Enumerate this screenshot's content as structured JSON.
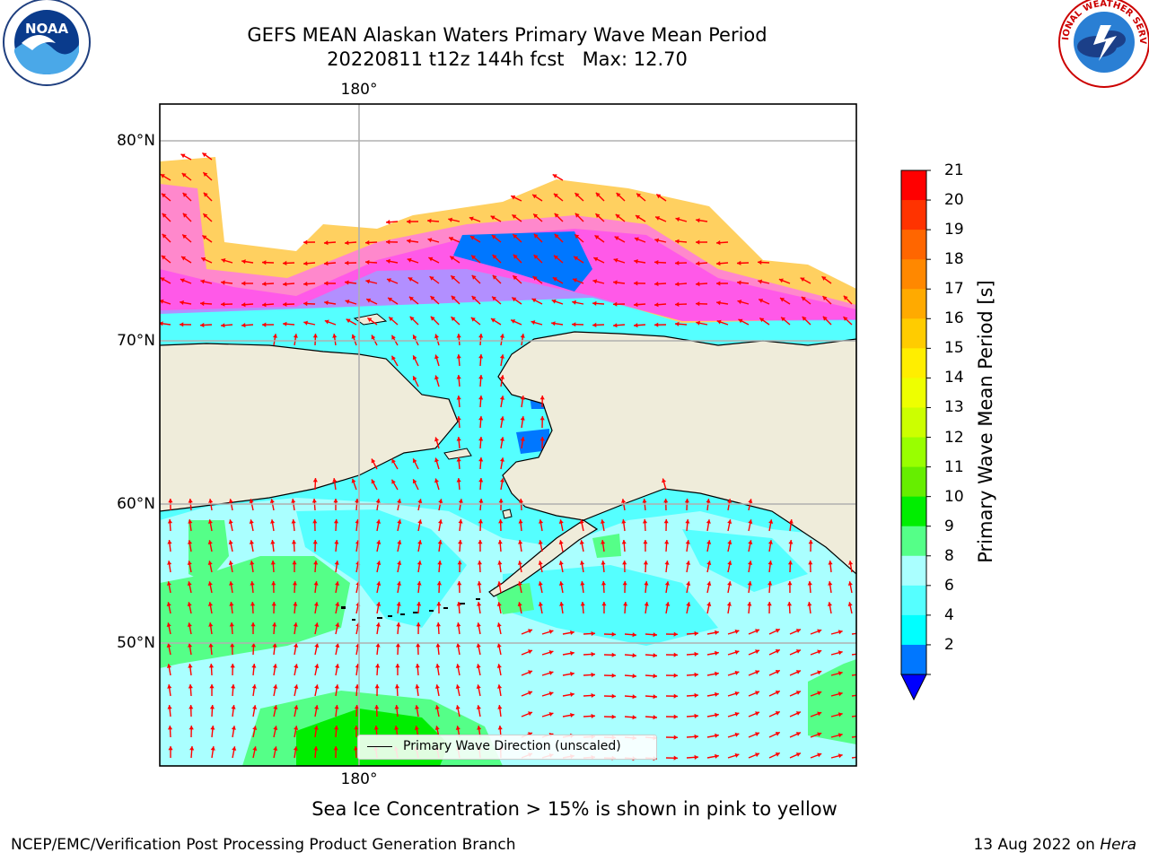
{
  "title": {
    "line1": "GEFS MEAN Alaskan Waters Primary Wave Mean Period",
    "line2": "20220811 t12z 144h fcst   Max: 12.70"
  },
  "logos": {
    "noaa": {
      "text": "NOAA",
      "ring_text": "NATIONAL OCEANIC AND ATMOSPHERIC ADMINISTRATION · U.S. DEPARTMENT OF COMMERCE"
    },
    "nws": {
      "ring_text": "NATIONAL WEATHER SERVICE"
    }
  },
  "map": {
    "lon_label_top": "180°",
    "lon_label_bottom": "180°",
    "lat_labels": [
      "80°N",
      "70°N",
      "60°N",
      "50°N"
    ],
    "legend_text": "Primary Wave Direction (unscaled)",
    "land_color": "#efecda",
    "grid_color": "#b0b0b0",
    "arrow_color": "#ff0000"
  },
  "colorbar": {
    "label": "Primary Wave Mean Period [s]",
    "ticks": [
      "21",
      "20",
      "19",
      "18",
      "17",
      "16",
      "15",
      "14",
      "13",
      "12",
      "11",
      "10",
      "9",
      "8",
      "6",
      "4",
      "2"
    ],
    "colors": [
      "#ff0000",
      "#ff3300",
      "#ff6600",
      "#ff8800",
      "#ffaa00",
      "#ffcc00",
      "#ffee00",
      "#eeff00",
      "#ccff00",
      "#99ff00",
      "#66ee00",
      "#00ee00",
      "#55ff88",
      "#aaffff",
      "#55ffff",
      "#00ffff",
      "#0077ff"
    ],
    "extend_color": "#0000ff"
  },
  "ice_note": "Sea Ice Concentration > 15% is shown in pink to yellow",
  "footer": {
    "left": "NCEP/EMC/Verification Post Processing Product Generation Branch",
    "right_date": "13 Aug 2022 on",
    "right_host": "Hera"
  }
}
